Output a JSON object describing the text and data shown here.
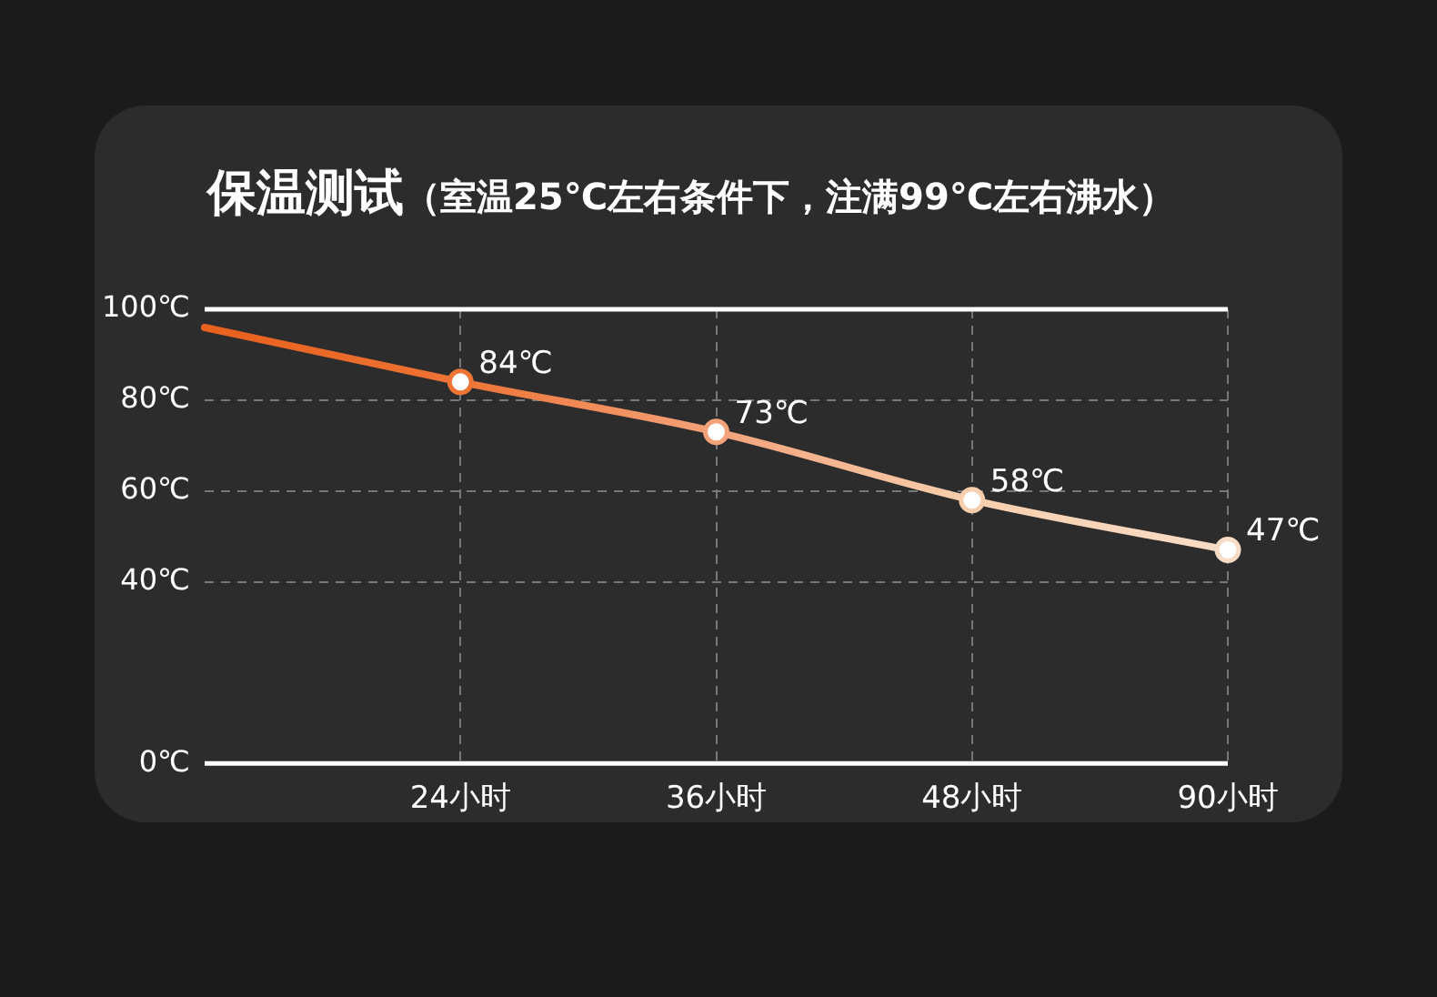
{
  "chart_data": {
    "type": "line",
    "title": "保温测试",
    "subtitle": "（室温25℃左右条件下，注满99℃左右沸水）",
    "categories": [
      null,
      "24小时",
      "36小时",
      "48小时",
      "90小时"
    ],
    "series": [
      {
        "values": [
          96,
          84,
          73,
          58,
          47
        ],
        "colors": [
          "#e8601c",
          "#ee7436",
          "#f3a27a",
          "#f8cfae",
          "#f9dcc6"
        ],
        "value_labels": [
          null,
          "84℃",
          "73℃",
          "58℃",
          "47℃"
        ]
      }
    ],
    "ylim": [
      0,
      100
    ],
    "yticks": [
      {
        "value": 0,
        "label": "0℃"
      },
      {
        "value": 40,
        "label": "40℃"
      },
      {
        "value": 60,
        "label": "60℃"
      },
      {
        "value": 80,
        "label": "80℃"
      },
      {
        "value": 100,
        "label": "100℃"
      }
    ],
    "grid": true,
    "marker": "circle",
    "line_style": "solid"
  }
}
